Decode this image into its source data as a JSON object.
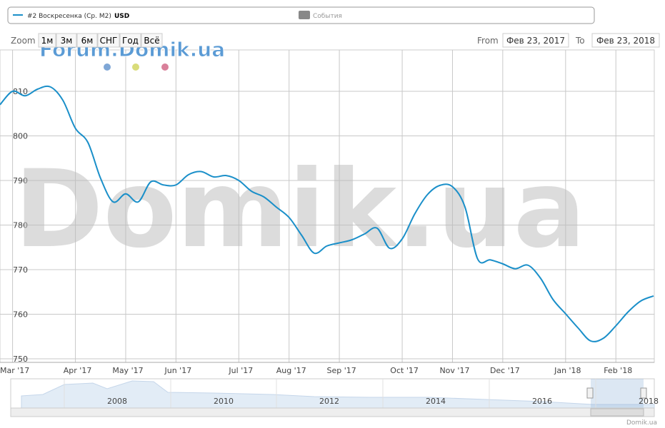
{
  "chart_data": {
    "type": "line",
    "legend": {
      "series_label": "#2 Воскресенка (Ср. M2)",
      "unit": "USD",
      "events": "События"
    },
    "zoom": {
      "label": "Zoom",
      "buttons": [
        "1м",
        "3м",
        "6м",
        "СНГ",
        "Год",
        "Всё"
      ]
    },
    "range": {
      "from_label": "From",
      "from": "Фев 23, 2017",
      "to_label": "To",
      "to": "Фев 23, 2018"
    },
    "watermark": "Domik.ua",
    "brand": "Forum.Domik.ua",
    "credit": "Domik.ua",
    "navigator_years": [
      "2008",
      "2010",
      "2012",
      "2014",
      "2016",
      "2018"
    ],
    "categories": [
      null,
      "Mar '17",
      null,
      null,
      null,
      null,
      "Apr '17",
      null,
      null,
      null,
      "May '17",
      null,
      null,
      null,
      "Jun '17",
      null,
      null,
      null,
      null,
      "Jul '17",
      null,
      null,
      null,
      "Aug '17",
      null,
      null,
      null,
      "Sep '17",
      null,
      null,
      null,
      null,
      "Oct '17",
      null,
      null,
      null,
      "Nov '17",
      null,
      null,
      null,
      "Dec '17",
      null,
      null,
      null,
      null,
      "Jan '18",
      null,
      null,
      null,
      "Feb '18",
      null,
      null,
      null
    ],
    "series": [
      {
        "name": "#2 Воскресенка (Ср. M2)",
        "color": "#1a8fc9",
        "values": [
          807,
          810,
          809,
          810.5,
          811,
          808,
          801.7,
          798.5,
          790.5,
          785.2,
          787,
          785.2,
          789.7,
          789,
          789,
          791.3,
          792,
          790.8,
          791.1,
          790,
          787.6,
          786.3,
          784,
          781.7,
          777.7,
          773.7,
          775.3,
          776,
          776.7,
          778,
          779.3,
          774.8,
          776.9,
          782.5,
          786.8,
          788.9,
          788.6,
          784,
          772.4,
          772.2,
          771.3,
          770.2,
          771,
          768.1,
          763.3,
          760.1,
          756.9,
          754,
          754.6,
          757.4,
          760.6,
          763,
          764.1
        ]
      }
    ],
    "ylim": [
      750,
      820
    ],
    "yticks": [
      750,
      760,
      770,
      780,
      790,
      800,
      810
    ],
    "grid": true
  }
}
